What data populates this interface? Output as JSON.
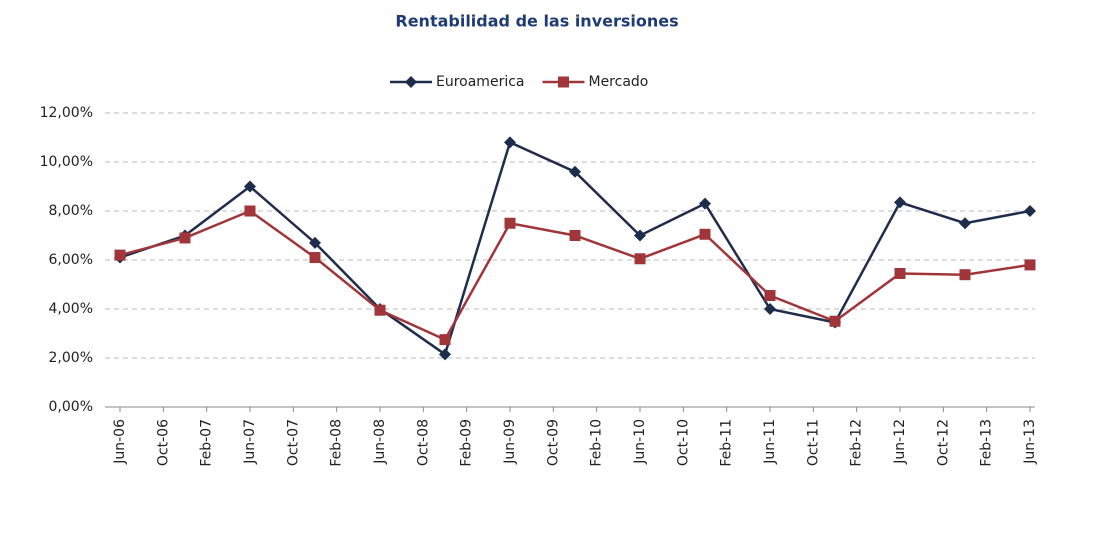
{
  "chart_data": {
    "type": "line",
    "title": "Rentabilidad de las inversiones",
    "x": [
      "2006-06",
      "2006-12",
      "2007-06",
      "2007-12",
      "2008-06",
      "2008-12",
      "2009-06",
      "2009-12",
      "2010-06",
      "2010-12",
      "2011-06",
      "2011-12",
      "2012-06",
      "2012-12",
      "2013-06"
    ],
    "series": [
      {
        "name": "Euroamerica",
        "color": "#1f2d4d",
        "marker": "diamond",
        "values": [
          6.1,
          7.0,
          9.0,
          6.7,
          4.0,
          2.15,
          10.8,
          9.6,
          7.0,
          8.3,
          4.0,
          3.45,
          8.35,
          7.5,
          8.0
        ]
      },
      {
        "name": "Mercado",
        "color": "#a0353a",
        "marker": "square",
        "values": [
          6.2,
          6.9,
          8.0,
          6.1,
          3.95,
          2.75,
          7.5,
          7.0,
          6.05,
          7.05,
          4.55,
          3.5,
          5.45,
          5.4,
          5.8
        ]
      }
    ],
    "xlim": [
      "2006-06",
      "2013-06"
    ],
    "xticks": [
      {
        "value": "2006-06",
        "label": "Jun-06"
      },
      {
        "value": "2006-10",
        "label": "Oct-06"
      },
      {
        "value": "2007-02",
        "label": "Feb-07"
      },
      {
        "value": "2007-06",
        "label": "Jun-07"
      },
      {
        "value": "2007-10",
        "label": "Oct-07"
      },
      {
        "value": "2008-02",
        "label": "Feb-08"
      },
      {
        "value": "2008-06",
        "label": "Jun-08"
      },
      {
        "value": "2008-10",
        "label": "Oct-08"
      },
      {
        "value": "2009-02",
        "label": "Feb-09"
      },
      {
        "value": "2009-06",
        "label": "Jun-09"
      },
      {
        "value": "2009-10",
        "label": "Oct-09"
      },
      {
        "value": "2010-02",
        "label": "Feb-10"
      },
      {
        "value": "2010-06",
        "label": "Jun-10"
      },
      {
        "value": "2010-10",
        "label": "Oct-10"
      },
      {
        "value": "2011-02",
        "label": "Feb-11"
      },
      {
        "value": "2011-06",
        "label": "Jun-11"
      },
      {
        "value": "2011-10",
        "label": "Oct-11"
      },
      {
        "value": "2012-02",
        "label": "Feb-12"
      },
      {
        "value": "2012-06",
        "label": "Jun-12"
      },
      {
        "value": "2012-10",
        "label": "Oct-12"
      },
      {
        "value": "2013-02",
        "label": "Feb-13"
      },
      {
        "value": "2013-06",
        "label": "Jun-13"
      }
    ],
    "ylim": [
      0,
      12
    ],
    "yticks": [
      {
        "value": 0,
        "label": "0,00%"
      },
      {
        "value": 2,
        "label": "2,00%"
      },
      {
        "value": 4,
        "label": "4,00%"
      },
      {
        "value": 6,
        "label": "6,00%"
      },
      {
        "value": 8,
        "label": "8,00%"
      },
      {
        "value": 10,
        "label": "10,00%"
      },
      {
        "value": 12,
        "label": "12,00%"
      }
    ],
    "grid": true,
    "legend": "top"
  }
}
